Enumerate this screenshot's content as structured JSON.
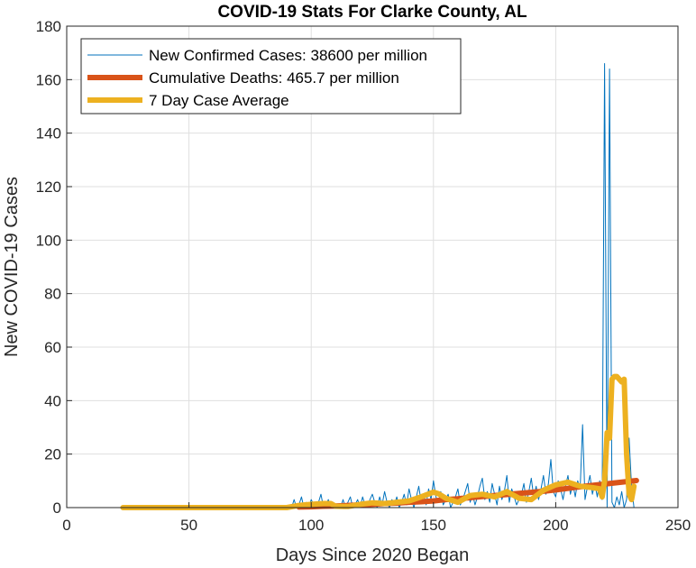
{
  "chart_data": {
    "type": "line",
    "title": "COVID-19 Stats For Clarke County, AL",
    "xlabel": "Days Since 2020 Began",
    "ylabel": "New COVID-19 Cases",
    "xlim": [
      0,
      250
    ],
    "ylim": [
      0,
      180
    ],
    "xticks": [
      0,
      50,
      100,
      150,
      200,
      250
    ],
    "yticks": [
      0,
      20,
      40,
      60,
      80,
      100,
      120,
      140,
      160,
      180
    ],
    "grid": true,
    "legend_position": "top-left",
    "series": [
      {
        "name": "New Confirmed Cases: 38600 per million",
        "color": "#0072BD",
        "width": 1,
        "x": [
          23,
          60,
          90,
          92,
          93,
          94,
          95,
          96,
          97,
          98,
          99,
          100,
          101,
          102,
          103,
          104,
          105,
          106,
          107,
          108,
          109,
          110,
          111,
          112,
          113,
          114,
          115,
          116,
          117,
          118,
          119,
          120,
          121,
          122,
          123,
          124,
          125,
          126,
          127,
          128,
          129,
          130,
          131,
          132,
          133,
          134,
          135,
          136,
          137,
          138,
          139,
          140,
          141,
          142,
          143,
          144,
          145,
          146,
          147,
          148,
          149,
          150,
          151,
          152,
          153,
          154,
          155,
          156,
          157,
          158,
          159,
          160,
          161,
          162,
          163,
          164,
          165,
          166,
          167,
          168,
          169,
          170,
          171,
          172,
          173,
          174,
          175,
          176,
          177,
          178,
          179,
          180,
          181,
          182,
          183,
          184,
          185,
          186,
          187,
          188,
          189,
          190,
          191,
          192,
          193,
          194,
          195,
          196,
          197,
          198,
          199,
          200,
          201,
          202,
          203,
          204,
          205,
          206,
          207,
          208,
          209,
          210,
          211,
          212,
          213,
          214,
          215,
          216,
          217,
          218,
          219,
          220,
          221,
          222,
          223,
          224,
          225,
          226,
          227,
          228,
          229,
          230,
          231,
          232
        ],
        "values": [
          0,
          0,
          0,
          0,
          3,
          0,
          1,
          4,
          0,
          2,
          0,
          3,
          1,
          0,
          2,
          5,
          0,
          1,
          3,
          0,
          2,
          0,
          1,
          0,
          3,
          0,
          2,
          4,
          0,
          1,
          3,
          0,
          4,
          1,
          0,
          3,
          5,
          2,
          0,
          4,
          1,
          6,
          2,
          0,
          3,
          1,
          4,
          0,
          2,
          5,
          1,
          7,
          3,
          0,
          4,
          8,
          2,
          5,
          1,
          7,
          3,
          10,
          4,
          2,
          6,
          1,
          3,
          5,
          0,
          2,
          4,
          7,
          1,
          3,
          6,
          9,
          2,
          5,
          1,
          4,
          8,
          11,
          3,
          6,
          2,
          9,
          5,
          1,
          8,
          3,
          6,
          12,
          2,
          7,
          4,
          1,
          3,
          5,
          9,
          2,
          6,
          11,
          4,
          8,
          3,
          7,
          12,
          5,
          9,
          18,
          6,
          4,
          10,
          7,
          3,
          8,
          12,
          5,
          9,
          4,
          10,
          7,
          31,
          3,
          8,
          12,
          5,
          9,
          4,
          10,
          3,
          166,
          0,
          164,
          2,
          0,
          4,
          1,
          6,
          0,
          3,
          26,
          8,
          0
        ]
      },
      {
        "name": "Cumulative Deaths: 465.7 per million",
        "color": "#D95319",
        "width": 6,
        "x": [
          95,
          100,
          105,
          110,
          115,
          120,
          125,
          130,
          135,
          140,
          145,
          150,
          155,
          160,
          165,
          170,
          175,
          180,
          185,
          190,
          195,
          200,
          205,
          210,
          215,
          220,
          225,
          230,
          233
        ],
        "values": [
          0.2,
          0.3,
          0.5,
          0.6,
          0.8,
          1.0,
          1.2,
          1.5,
          1.7,
          2.0,
          2.2,
          2.5,
          3.0,
          3.3,
          3.7,
          4.1,
          4.5,
          4.9,
          5.3,
          5.7,
          6.1,
          6.6,
          7.2,
          7.8,
          8.3,
          8.8,
          9.3,
          9.8,
          10.1
        ]
      },
      {
        "name": "7 Day Case Average",
        "color": "#EDB120",
        "width": 6,
        "x": [
          23,
          60,
          90,
          95,
          100,
          105,
          108,
          110,
          115,
          120,
          125,
          130,
          135,
          140,
          145,
          150,
          152,
          155,
          160,
          165,
          170,
          175,
          180,
          185,
          190,
          195,
          200,
          205,
          210,
          215,
          218,
          219,
          220,
          221,
          222,
          223,
          224,
          225,
          226,
          227,
          228,
          229,
          230,
          231,
          232
        ],
        "values": [
          0,
          0,
          0,
          0.8,
          1.2,
          1.5,
          1.5,
          0.5,
          0.4,
          1.2,
          1.8,
          1.5,
          2.0,
          2.5,
          4.0,
          5.8,
          5.2,
          3.5,
          2.0,
          4.5,
          5.0,
          4.0,
          6.0,
          3.5,
          3.0,
          6.5,
          8.5,
          9.5,
          8.0,
          7.5,
          7.0,
          4.0,
          10.0,
          28.0,
          26.0,
          48.0,
          49.0,
          49.0,
          48.0,
          47.0,
          48.0,
          20.0,
          5.0,
          3.0,
          8.0
        ]
      }
    ]
  }
}
